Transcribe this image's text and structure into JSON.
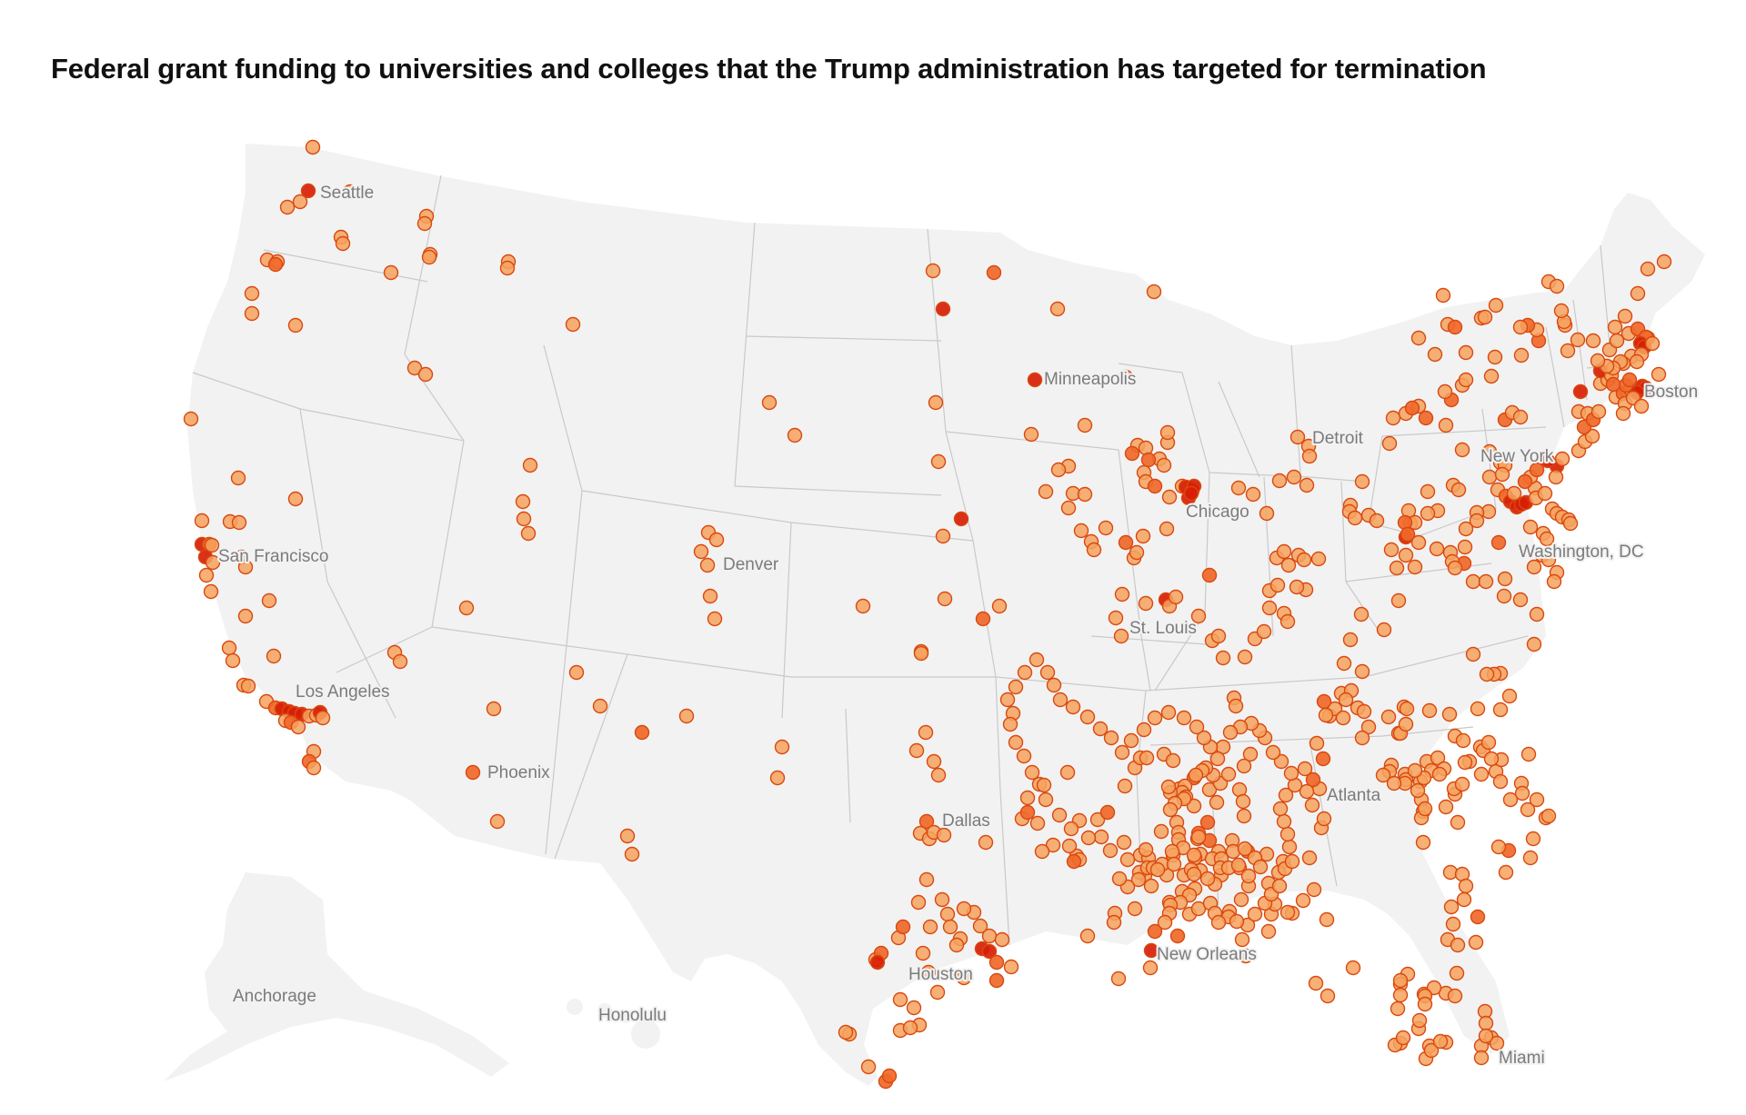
{
  "title": "Federal grant funding to universities and colleges that the Trump administration has targeted for termination",
  "colors": {
    "dot_light": "#f6a25e",
    "dot_mid": "#f0692a",
    "dot_dark": "#d81e05",
    "dot_stroke": "#d9480f",
    "land": "#f2f2f2",
    "border": "#c9c9c9",
    "label": "#7b7b7b"
  },
  "cities": [
    {
      "name": "Seattle"
    },
    {
      "name": "Minneapolis"
    },
    {
      "name": "Detroit"
    },
    {
      "name": "Boston"
    },
    {
      "name": "New York"
    },
    {
      "name": "Chicago"
    },
    {
      "name": "San Francisco"
    },
    {
      "name": "Denver"
    },
    {
      "name": "Washington, DC"
    },
    {
      "name": "St. Louis"
    },
    {
      "name": "Los Angeles"
    },
    {
      "name": "Phoenix"
    },
    {
      "name": "Atlanta"
    },
    {
      "name": "Dallas"
    },
    {
      "name": "Houston"
    },
    {
      "name": "New Orleans"
    },
    {
      "name": "Anchorage"
    },
    {
      "name": "Honolulu"
    },
    {
      "name": "Miami"
    }
  ]
}
